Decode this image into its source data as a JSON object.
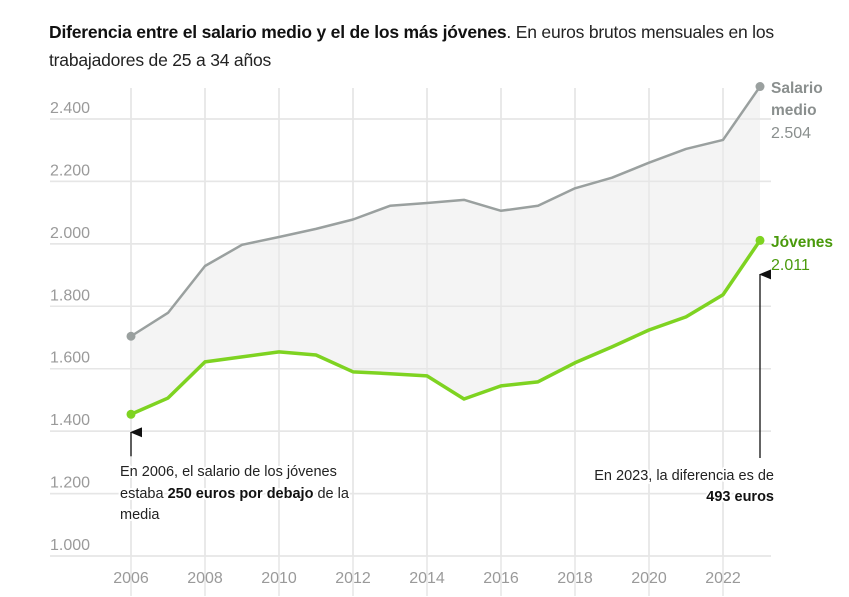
{
  "title": {
    "bold": "Diferencia entre el salario medio y el de los más jóvenes",
    "rest": ". En euros brutos mensuales en los trabajadores de 25 a 34 años"
  },
  "colors": {
    "medio_line": "#9aa09f",
    "jovenes_line": "#7ed321",
    "jovenes_label": "#4a9a0c",
    "medio_label": "#8a8f8e",
    "gap_fill": "#f4f4f4",
    "grid": "#e6e6e6"
  },
  "chart_data": {
    "type": "line",
    "title": "Diferencia entre el salario medio y el de los más jóvenes",
    "subtitle": "En euros brutos mensuales en los trabajadores de 25 a 34 años",
    "xlabel": "",
    "ylabel": "",
    "x": [
      2006,
      2007,
      2008,
      2009,
      2010,
      2011,
      2012,
      2013,
      2014,
      2015,
      2016,
      2017,
      2018,
      2019,
      2020,
      2021,
      2022,
      2023
    ],
    "xlim": [
      2006,
      2023
    ],
    "ylim": [
      1000,
      2500
    ],
    "xticks": [
      "2006",
      "2008",
      "2010",
      "2012",
      "2014",
      "2016",
      "2018",
      "2020",
      "2022"
    ],
    "xtick_values": [
      2006,
      2008,
      2010,
      2012,
      2014,
      2016,
      2018,
      2020,
      2022
    ],
    "yticks": [
      "1.000",
      "1.200",
      "1.400",
      "1.600",
      "1.800",
      "2.000",
      "2.200",
      "2.400"
    ],
    "ytick_values": [
      1000,
      1200,
      1400,
      1600,
      1800,
      2000,
      2200,
      2400
    ],
    "grid": true,
    "fill_between_series": true,
    "series": [
      {
        "name": "Salario medio",
        "label_line1": "Salario",
        "label_line2": "medio",
        "end_value_label": "2.504",
        "values": [
          1704,
          1779,
          1929,
          1997,
          2022,
          2048,
          2078,
          2122,
          2131,
          2141,
          2106,
          2122,
          2178,
          2212,
          2260,
          2304,
          2333,
          2504
        ]
      },
      {
        "name": "Jóvenes",
        "label_line1": "Jóvenes",
        "end_value_label": "2.011",
        "values": [
          1454,
          1506,
          1622,
          1638,
          1654,
          1644,
          1590,
          1584,
          1577,
          1503,
          1545,
          1558,
          1619,
          1670,
          1724,
          1766,
          1837,
          2011
        ]
      }
    ],
    "annotations": [
      {
        "year": 2006,
        "line1": "En 2006, el salario de los jóvenes",
        "line2_pre": "estaba ",
        "line2_bold": "250 euros por debajo",
        "line2_post": " de la",
        "line3": "media"
      },
      {
        "year": 2023,
        "line1": "En 2023, la diferencia es de",
        "line2_bold": "493 euros"
      }
    ]
  }
}
